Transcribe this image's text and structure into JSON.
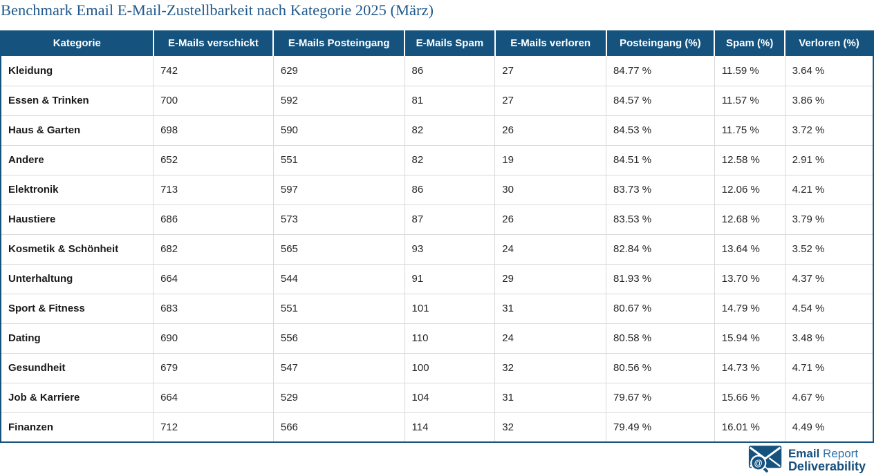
{
  "chart_data": {
    "type": "table",
    "title": "Benchmark Email E-Mail-Zustellbarkeit nach Kategorie 2025 (März)",
    "columns": [
      "Kategorie",
      "E-Mails verschickt",
      "E-Mails Posteingang",
      "E-Mails Spam",
      "E-Mails verloren",
      "Posteingang (%)",
      "Spam (%)",
      "Verloren (%)"
    ],
    "rows": [
      [
        "Kleidung",
        "742",
        "629",
        "86",
        "27",
        "84.77 %",
        "11.59 %",
        "3.64 %"
      ],
      [
        "Essen & Trinken",
        "700",
        "592",
        "81",
        "27",
        "84.57 %",
        "11.57 %",
        "3.86 %"
      ],
      [
        "Haus & Garten",
        "698",
        "590",
        "82",
        "26",
        "84.53 %",
        "11.75 %",
        "3.72 %"
      ],
      [
        "Andere",
        "652",
        "551",
        "82",
        "19",
        "84.51 %",
        "12.58 %",
        "2.91 %"
      ],
      [
        "Elektronik",
        "713",
        "597",
        "86",
        "30",
        "83.73 %",
        "12.06 %",
        "4.21 %"
      ],
      [
        "Haustiere",
        "686",
        "573",
        "87",
        "26",
        "83.53 %",
        "12.68 %",
        "3.79 %"
      ],
      [
        "Kosmetik & Schönheit",
        "682",
        "565",
        "93",
        "24",
        "82.84 %",
        "13.64 %",
        "3.52 %"
      ],
      [
        "Unterhaltung",
        "664",
        "544",
        "91",
        "29",
        "81.93 %",
        "13.70 %",
        "4.37 %"
      ],
      [
        "Sport & Fitness",
        "683",
        "551",
        "101",
        "31",
        "80.67 %",
        "14.79 %",
        "4.54 %"
      ],
      [
        "Dating",
        "690",
        "556",
        "110",
        "24",
        "80.58 %",
        "15.94 %",
        "3.48 %"
      ],
      [
        "Gesundheit",
        "679",
        "547",
        "100",
        "32",
        "80.56 %",
        "14.73 %",
        "4.71 %"
      ],
      [
        "Job & Karriere",
        "664",
        "529",
        "104",
        "31",
        "79.67 %",
        "15.66 %",
        "4.67 %"
      ],
      [
        "Finanzen",
        "712",
        "566",
        "114",
        "32",
        "79.49 %",
        "16.01 %",
        "4.49 %"
      ]
    ],
    "column_widths_pct": [
      17.48,
      13.77,
      15.03,
      10.36,
      12.74,
      12.42,
      8.07,
      10.13
    ]
  },
  "footer_logo": {
    "line1_bold": "Email",
    "line1_regular": "Report",
    "line2": "Deliverability",
    "magnifier_symbol": "@"
  },
  "colors": {
    "header_bg": "#15537e",
    "title_text": "#20598b",
    "grid_line": "#d9d9d9",
    "logo_navy": "#164f7d",
    "logo_light_blue": "#3173ad"
  }
}
